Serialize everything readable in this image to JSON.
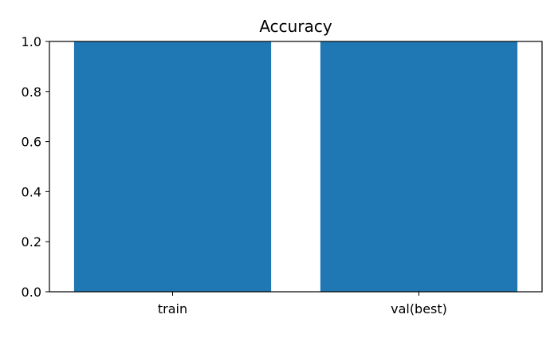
{
  "chart_data": {
    "type": "bar",
    "title": "Accuracy",
    "xlabel": "",
    "ylabel": "",
    "categories": [
      "train",
      "val(best)"
    ],
    "values": [
      1.0,
      1.0
    ],
    "ylim": [
      0,
      1
    ],
    "yticks": [
      "0.0",
      "0.2",
      "0.4",
      "0.6",
      "0.8",
      "1.0"
    ],
    "grid": false,
    "bar_color": "#1f77b4"
  }
}
